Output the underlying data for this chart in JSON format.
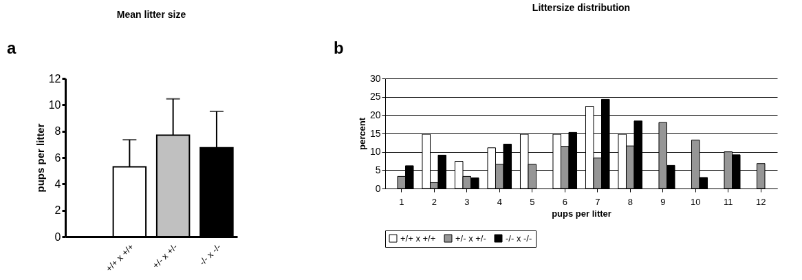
{
  "chart_data": [
    {
      "type": "bar",
      "title": "Mean litter size",
      "ylabel": "pups per litter",
      "annotations": [
        "a"
      ],
      "categories": [
        null,
        "+/+ x +/+",
        "+/- x +/-",
        "-/- x -/-"
      ],
      "values": [
        null,
        5.3,
        7.7,
        6.75
      ],
      "colors": [
        "#ffffff",
        "#ffffff",
        "#c0c0c0",
        "#000000"
      ],
      "errors": [
        null,
        [
          5.3,
          7.35
        ],
        [
          7.7,
          10.45
        ],
        [
          6.75,
          9.5
        ]
      ],
      "ylim": [
        0,
        12
      ],
      "yticks": [
        0,
        2,
        4,
        6,
        8,
        10,
        12
      ],
      "grid": false
    },
    {
      "type": "bar",
      "title": "Littersize distribution",
      "xlabel": "pups per litter",
      "ylabel": "percent",
      "annotations": [
        "b"
      ],
      "categories": [
        "1",
        "2",
        "3",
        "4",
        "5",
        "6",
        "7",
        "8",
        "9",
        "10",
        "11",
        "12"
      ],
      "series": [
        {
          "name": "+/+ x +/+",
          "color": "#ffffff",
          "values": [
            0,
            14.8,
            7.4,
            11.1,
            14.8,
            14.8,
            22.4,
            14.8,
            0,
            0,
            0,
            0
          ]
        },
        {
          "name": "+/- x +/-",
          "color": "#969696",
          "values": [
            3.3,
            1.6,
            3.3,
            6.6,
            6.6,
            11.5,
            8.3,
            11.6,
            18.0,
            13.2,
            10.0,
            6.8
          ]
        },
        {
          "name": "-/- x -/-",
          "color": "#000000",
          "values": [
            6.2,
            9.1,
            2.9,
            12.1,
            0,
            15.3,
            24.3,
            18.4,
            6.3,
            3.0,
            9.2,
            0
          ]
        }
      ],
      "ylim": [
        0,
        30
      ],
      "yticks": [
        0,
        5,
        10,
        15,
        20,
        25,
        30
      ],
      "grid": "y",
      "legend": "bottom"
    }
  ]
}
